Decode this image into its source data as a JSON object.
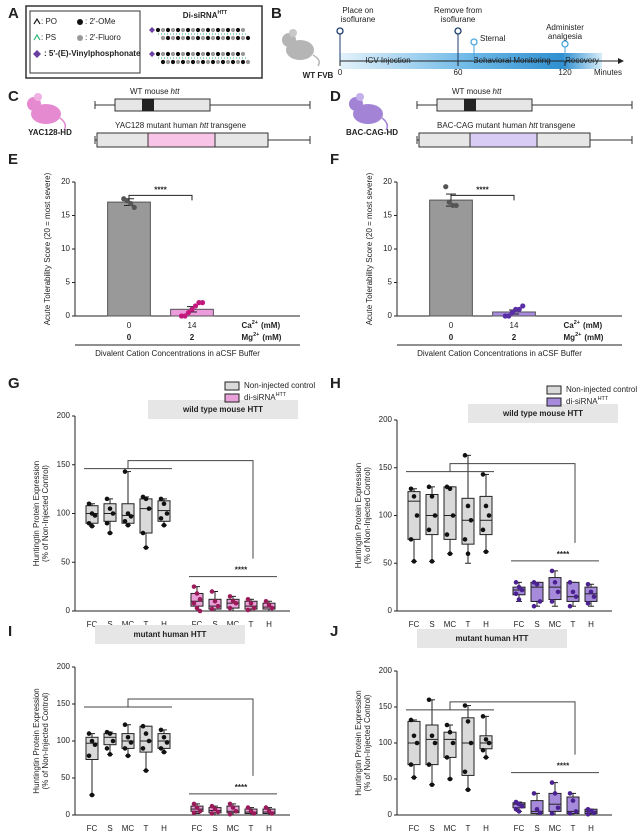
{
  "panel_labels": [
    "A",
    "B",
    "C",
    "D",
    "E",
    "F",
    "G",
    "H",
    "I",
    "J"
  ],
  "diagrams": {
    "A": {
      "legend": [
        ": PO",
        ": 2'-OMe",
        ": PS",
        ": 2'-Fluoro",
        ": 5'-(E)-Vinylphosphonate"
      ],
      "title": "Di-siRNA",
      "title_superscript": "HTT"
    },
    "B": {
      "subject": "WT FVB",
      "events": [
        [
          "Place on",
          "isoflurane"
        ],
        [
          "Remove from",
          "isoflurane"
        ],
        [
          "Sternal"
        ],
        [
          "Administer",
          "analgesia"
        ]
      ],
      "phases": [
        "ICV Injection",
        "Behavioral Monitoring",
        "Recovery"
      ],
      "ticks": [
        0,
        60,
        120
      ],
      "unit": "Minutes"
    },
    "C": {
      "model": "YAC128-HD",
      "wt_label": [
        "WT mouse",
        "htt"
      ],
      "transgene_label": [
        "YAC128 mutant human",
        "htt",
        "transgene"
      ]
    },
    "D": {
      "model": "BAC-CAG-HD",
      "wt_label": [
        "WT mouse",
        "htt"
      ],
      "transgene_label": [
        "BAC-CAG mutant human",
        "htt",
        "transgene"
      ]
    }
  },
  "chart_data": [
    {
      "type": "bar",
      "y_label": "Acute Tolerability Score (20 = most severe)",
      "ylim": [
        0,
        20
      ],
      "yticks": [
        0,
        5,
        10,
        15,
        20
      ],
      "x_rows": [
        {
          "label": "Ca",
          "superscript": "2+",
          "unit": "(mM)",
          "values": [
            0,
            14
          ]
        },
        {
          "label": "Mg",
          "superscript": "2+",
          "unit": "(mM)",
          "values": [
            0,
            2
          ]
        }
      ],
      "x_label": "Divalent Cation Concentrations in aCSF Buffer",
      "values": [
        17,
        1
      ],
      "errors": [
        0.5,
        0.4
      ],
      "colors": [
        "#999999",
        "#ec9bdc"
      ],
      "point_colors": [
        "#555555",
        "#c2197c"
      ],
      "points": [
        [
          17.5,
          17.2,
          16.8,
          16.2
        ],
        [
          0,
          0,
          0.5,
          1,
          1.5,
          2,
          2
        ]
      ],
      "significance": "****"
    },
    {
      "type": "bar",
      "y_label": "Acute Tolerability Score (20 = most severe)",
      "ylim": [
        0,
        20
      ],
      "yticks": [
        0,
        5,
        10,
        15,
        20
      ],
      "x_rows": [
        {
          "label": "Ca",
          "superscript": "2+",
          "unit": "(mM)",
          "values": [
            0,
            14
          ]
        },
        {
          "label": "Mg",
          "superscript": "2+",
          "unit": "(mM)",
          "values": [
            0,
            2
          ]
        }
      ],
      "x_label": "Divalent Cation Concentrations in aCSF Buffer",
      "values": [
        17.3,
        0.6
      ],
      "errors": [
        0.9,
        0.3
      ],
      "colors": [
        "#999999",
        "#a88be0"
      ],
      "point_colors": [
        "#555555",
        "#5a2ea6"
      ],
      "points": [
        [
          19.3,
          17,
          16.5,
          16.5
        ],
        [
          0,
          0,
          0.5,
          1,
          1,
          1.5
        ]
      ],
      "significance": "****"
    },
    {
      "type": "box",
      "title": "wild type mouse HTT",
      "y_label": [
        "Huntingtin Protein Expression",
        "(% of Non-Injected Control)"
      ],
      "ylim": [
        0,
        200
      ],
      "yticks": [
        0,
        50,
        100,
        150,
        200
      ],
      "legend": true,
      "significance": "****",
      "categories": [
        "FC",
        "S",
        "MC",
        "T",
        "H"
      ],
      "series": [
        {
          "name": "Non-injected control",
          "color": "#d9d9d9",
          "point_color": "#111111",
          "boxes": [
            {
              "min": 87,
              "q1": 90,
              "median": 100,
              "q3": 108,
              "max": 110,
              "points": [
                110,
                100,
                98,
                90,
                87
              ]
            },
            {
              "min": 80,
              "q1": 92,
              "median": 100,
              "q3": 110,
              "max": 115,
              "points": [
                115,
                105,
                100,
                90,
                80
              ]
            },
            {
              "min": 88,
              "q1": 90,
              "median": 98,
              "q3": 110,
              "max": 143,
              "points": [
                143,
                100,
                97,
                92,
                88
              ]
            },
            {
              "min": 65,
              "q1": 80,
              "median": 105,
              "q3": 115,
              "max": 117,
              "points": [
                117,
                115,
                105,
                80,
                65
              ]
            },
            {
              "min": 88,
              "q1": 92,
              "median": 103,
              "q3": 113,
              "max": 115,
              "points": [
                115,
                110,
                100,
                95,
                88
              ]
            }
          ]
        },
        {
          "name": "di-siRNA",
          "name_superscript": "HTT",
          "color": "#eaa1d9",
          "point_color": "#9b1b5a",
          "boxes": [
            {
              "min": 0,
              "q1": 5,
              "median": 10,
              "q3": 18,
              "max": 25,
              "points": [
                25,
                18,
                12,
                8,
                3,
                0
              ]
            },
            {
              "min": 0,
              "q1": 2,
              "median": 5,
              "q3": 12,
              "max": 20,
              "points": [
                20,
                10,
                5,
                2
              ]
            },
            {
              "min": 0,
              "q1": 3,
              "median": 8,
              "q3": 12,
              "max": 15,
              "points": [
                15,
                10,
                8,
                3
              ]
            },
            {
              "min": 0,
              "q1": 2,
              "median": 5,
              "q3": 10,
              "max": 12,
              "points": [
                12,
                8,
                3,
                1
              ]
            },
            {
              "min": 0,
              "q1": 2,
              "median": 4,
              "q3": 8,
              "max": 10,
              "points": [
                10,
                6,
                3
              ]
            }
          ]
        }
      ]
    },
    {
      "type": "box",
      "title": "wild type mouse HTT",
      "y_label": [
        "Huntingtin Protein Expression",
        "(% of Non-Injected Control)"
      ],
      "ylim": [
        0,
        200
      ],
      "yticks": [
        0,
        50,
        100,
        150,
        200
      ],
      "legend": true,
      "significance": "****",
      "categories": [
        "FC",
        "S",
        "MC",
        "T",
        "H"
      ],
      "series": [
        {
          "name": "Non-injected control",
          "color": "#d9d9d9",
          "point_color": "#111111",
          "boxes": [
            {
              "min": 52,
              "q1": 75,
              "median": 115,
              "q3": 125,
              "max": 128,
              "points": [
                128,
                120,
                100,
                75,
                52
              ]
            },
            {
              "min": 52,
              "q1": 80,
              "median": 100,
              "q3": 122,
              "max": 130,
              "points": [
                130,
                120,
                100,
                85,
                52
              ]
            },
            {
              "min": 60,
              "q1": 75,
              "median": 100,
              "q3": 130,
              "max": 130,
              "points": [
                130,
                128,
                100,
                80,
                60
              ]
            },
            {
              "min": 50,
              "q1": 70,
              "median": 95,
              "q3": 118,
              "max": 163,
              "points": [
                163,
                110,
                95,
                75,
                60
              ]
            },
            {
              "min": 62,
              "q1": 80,
              "median": 95,
              "q3": 120,
              "max": 143,
              "points": [
                143,
                110,
                100,
                85,
                62
              ]
            }
          ]
        },
        {
          "name": "di-siRNA",
          "name_superscript": "HTT",
          "color": "#a58bd9",
          "point_color": "#4b2191",
          "boxes": [
            {
              "min": 10,
              "q1": 17,
              "median": 22,
              "q3": 25,
              "max": 30,
              "points": [
                30,
                25,
                22,
                18,
                12
              ]
            },
            {
              "min": 5,
              "q1": 10,
              "median": 25,
              "q3": 30,
              "max": 30,
              "points": [
                30,
                28,
                10,
                5
              ]
            },
            {
              "min": 5,
              "q1": 12,
              "median": 25,
              "q3": 35,
              "max": 42,
              "points": [
                42,
                30,
                20,
                10
              ]
            },
            {
              "min": 5,
              "q1": 10,
              "median": 15,
              "q3": 30,
              "max": 30,
              "points": [
                30,
                20,
                15,
                5
              ]
            },
            {
              "min": 5,
              "q1": 10,
              "median": 18,
              "q3": 25,
              "max": 28,
              "points": [
                28,
                20,
                15,
                8
              ]
            }
          ]
        }
      ]
    },
    {
      "type": "box",
      "title": "mutant human HTT",
      "y_label": [
        "Huntingtin Protein Expression",
        "(% of Non-Injected Control)"
      ],
      "ylim": [
        0,
        200
      ],
      "yticks": [
        0,
        50,
        100,
        150,
        200
      ],
      "legend": false,
      "significance": "****",
      "categories": [
        "FC",
        "S",
        "MC",
        "T",
        "H"
      ],
      "series": [
        {
          "name": "Non-injected control",
          "color": "#d9d9d9",
          "point_color": "#111111",
          "boxes": [
            {
              "min": 27,
              "q1": 75,
              "median": 97,
              "q3": 105,
              "max": 110,
              "points": [
                110,
                100,
                95,
                80,
                27
              ]
            },
            {
              "min": 82,
              "q1": 95,
              "median": 105,
              "q3": 110,
              "max": 112,
              "points": [
                112,
                110,
                100,
                90,
                82
              ]
            },
            {
              "min": 80,
              "q1": 90,
              "median": 100,
              "q3": 110,
              "max": 122,
              "points": [
                122,
                105,
                98,
                90,
                80
              ]
            },
            {
              "min": 60,
              "q1": 85,
              "median": 100,
              "q3": 120,
              "max": 120,
              "points": [
                120,
                110,
                100,
                90,
                60
              ]
            },
            {
              "min": 85,
              "q1": 90,
              "median": 100,
              "q3": 110,
              "max": 115,
              "points": [
                115,
                105,
                98,
                90,
                85
              ]
            }
          ]
        },
        {
          "name": "di-siRNA",
          "name_superscript": "HTT",
          "color": "#eaa1d9",
          "point_color": "#9b1b5a",
          "boxes": [
            {
              "min": 2,
              "q1": 5,
              "median": 8,
              "q3": 12,
              "max": 15,
              "points": [
                15,
                10,
                5,
                3
              ]
            },
            {
              "min": 0,
              "q1": 3,
              "median": 6,
              "q3": 10,
              "max": 12,
              "points": [
                12,
                8,
                4,
                2
              ]
            },
            {
              "min": 0,
              "q1": 3,
              "median": 5,
              "q3": 12,
              "max": 15,
              "points": [
                15,
                10,
                5,
                1
              ]
            },
            {
              "min": 0,
              "q1": 2,
              "median": 4,
              "q3": 8,
              "max": 10,
              "points": [
                10,
                5,
                2
              ]
            },
            {
              "min": 0,
              "q1": 2,
              "median": 4,
              "q3": 8,
              "max": 10,
              "points": [
                10,
                5,
                2
              ]
            }
          ]
        }
      ]
    },
    {
      "type": "box",
      "title": "mutant human HTT",
      "y_label": [
        "Huntingtin Protein Expression",
        "(% of Non-Injected Control)"
      ],
      "ylim": [
        0,
        200
      ],
      "yticks": [
        0,
        50,
        100,
        150,
        200
      ],
      "legend": false,
      "significance": "****",
      "categories": [
        "FC",
        "S",
        "MC",
        "T",
        "H"
      ],
      "series": [
        {
          "name": "Non-injected control",
          "color": "#d9d9d9",
          "point_color": "#111111",
          "boxes": [
            {
              "min": 52,
              "q1": 70,
              "median": 100,
              "q3": 130,
              "max": 132,
              "points": [
                132,
                110,
                100,
                70,
                52
              ]
            },
            {
              "min": 42,
              "q1": 70,
              "median": 105,
              "q3": 125,
              "max": 160,
              "points": [
                160,
                110,
                100,
                70,
                42
              ]
            },
            {
              "min": 50,
              "q1": 80,
              "median": 105,
              "q3": 115,
              "max": 125,
              "points": [
                125,
                115,
                100,
                80,
                50
              ]
            },
            {
              "min": 35,
              "q1": 55,
              "median": 100,
              "q3": 135,
              "max": 152,
              "points": [
                152,
                130,
                100,
                60,
                35
              ]
            },
            {
              "min": 80,
              "q1": 92,
              "median": 100,
              "q3": 110,
              "max": 137,
              "points": [
                137,
                105,
                100,
                90,
                80
              ]
            }
          ]
        },
        {
          "name": "di-siRNA",
          "name_superscript": "HTT",
          "color": "#a58bd9",
          "point_color": "#4b2191",
          "boxes": [
            {
              "min": 5,
              "q1": 10,
              "median": 15,
              "q3": 17,
              "max": 18,
              "points": [
                18,
                15,
                12,
                8,
                5
              ]
            },
            {
              "min": 0,
              "q1": 2,
              "median": 5,
              "q3": 20,
              "max": 30,
              "points": [
                30,
                8,
                3
              ]
            },
            {
              "min": 0,
              "q1": 5,
              "median": 15,
              "q3": 30,
              "max": 45,
              "points": [
                45,
                30,
                10,
                2
              ]
            },
            {
              "min": 0,
              "q1": 2,
              "median": 5,
              "q3": 25,
              "max": 30,
              "points": [
                30,
                20,
                5,
                2
              ]
            },
            {
              "min": 0,
              "q1": 2,
              "median": 5,
              "q3": 8,
              "max": 8,
              "points": [
                8,
                6,
                3,
                1
              ]
            }
          ]
        }
      ]
    }
  ]
}
